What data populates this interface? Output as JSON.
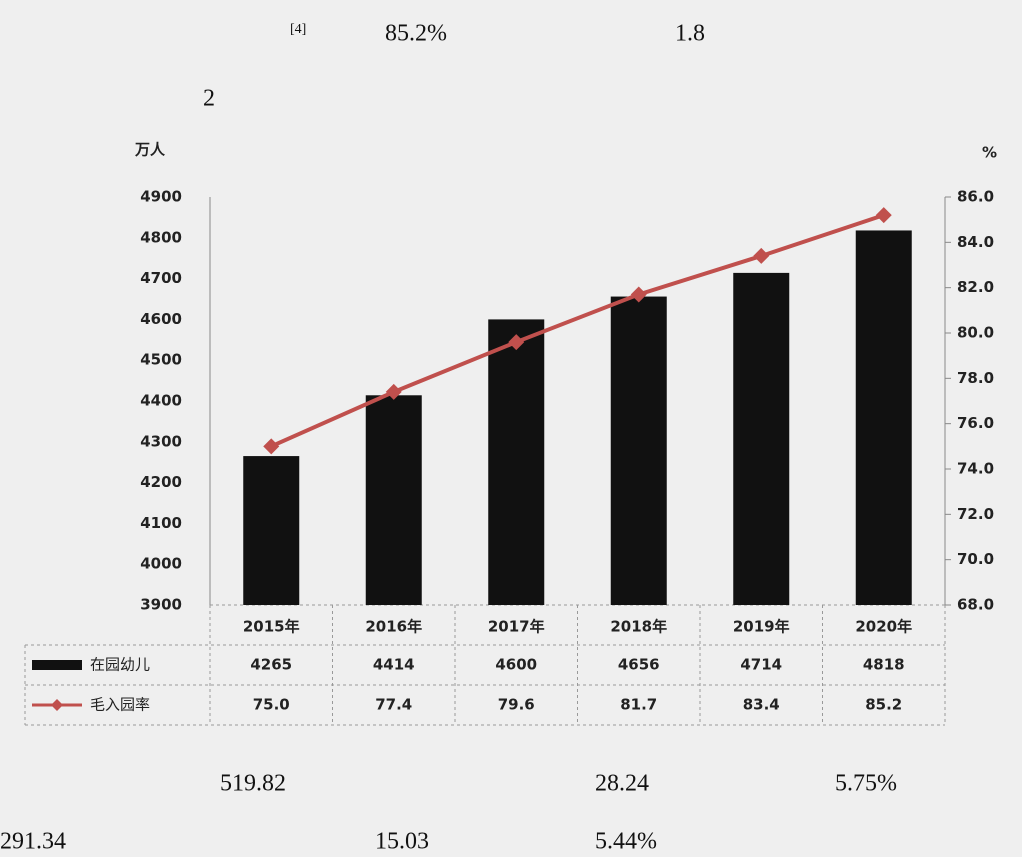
{
  "annotations": [
    "[4]",
    "85.2%",
    "1.8",
    "2",
    "519.82",
    "28.24",
    "5.75%",
    "291.34",
    "15.03",
    "5.44%"
  ],
  "chart_data": {
    "type": "bar",
    "y_label": "万人",
    "y2_label": "%",
    "categories": [
      "2015年",
      "2016年",
      "2017年",
      "2018年",
      "2019年",
      "2020年"
    ],
    "series": [
      {
        "name": "在园幼儿",
        "color": "#111111",
        "values": [
          4265,
          4414,
          4600,
          4656,
          4714,
          4818
        ]
      },
      {
        "name": "毛入园率",
        "color": "#c0504d",
        "type": "line",
        "axis": "y2",
        "values": [
          75,
          77.4,
          79.6,
          81.7,
          83.4,
          85.2
        ],
        "value_labels": [
          "75.0",
          "77.4",
          "79.6",
          "81.7",
          "83.4",
          "85.2"
        ]
      }
    ],
    "ylim": [
      3900,
      4900
    ],
    "yticks": [
      3900,
      4000,
      4100,
      4200,
      4300,
      4400,
      4500,
      4600,
      4700,
      4800,
      4900
    ],
    "y2lim": [
      68,
      86
    ],
    "y2ticks": [
      {
        "value": 68,
        "label": "68.0"
      },
      {
        "value": 70,
        "label": "70.0"
      },
      {
        "value": 72,
        "label": "72.0"
      },
      {
        "value": 74,
        "label": "74.0"
      },
      {
        "value": 76,
        "label": "76.0"
      },
      {
        "value": 78,
        "label": "78.0"
      },
      {
        "value": 80,
        "label": "80.0"
      },
      {
        "value": 82,
        "label": "82.0"
      },
      {
        "value": 84,
        "label": "84.0"
      },
      {
        "value": 86,
        "label": "86.0"
      }
    ]
  }
}
